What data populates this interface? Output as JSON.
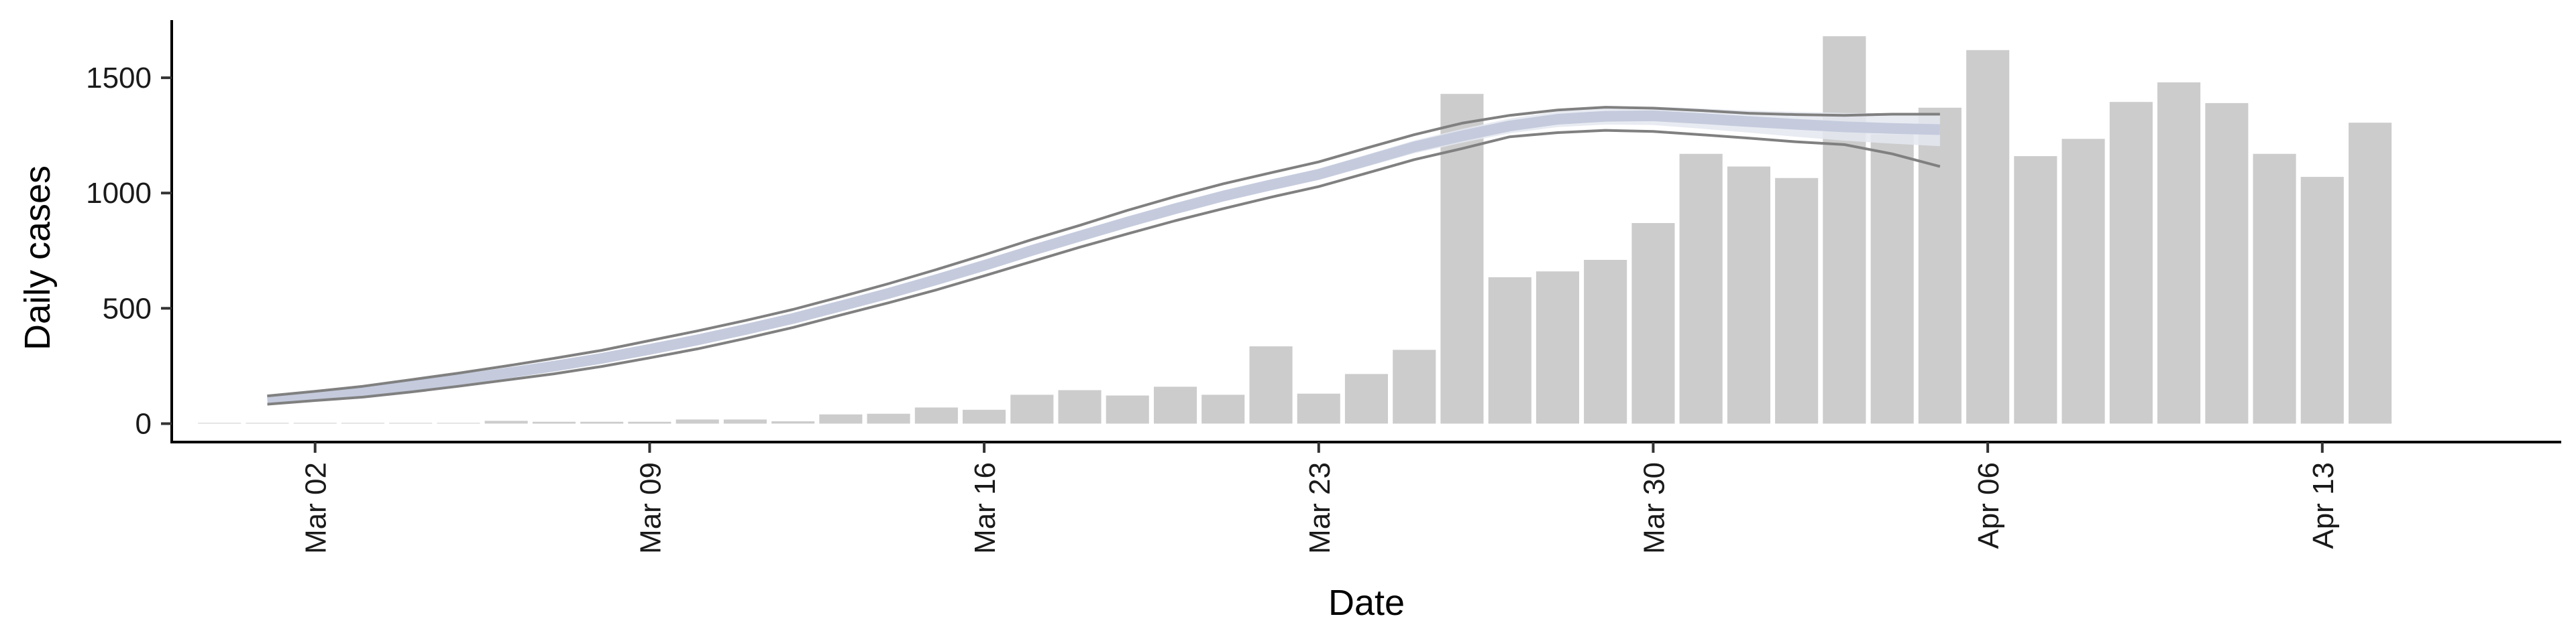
{
  "chart_data": {
    "type": "bar",
    "xlabel": "Date",
    "ylabel": "Daily cases",
    "x_axis_type": "date",
    "xlim": [
      "2020-02-28",
      "2020-04-18"
    ],
    "ylim": [
      -80,
      1750
    ],
    "x_ticks": [
      {
        "date": "2020-03-02",
        "label": "Mar 02"
      },
      {
        "date": "2020-03-09",
        "label": "Mar 09"
      },
      {
        "date": "2020-03-16",
        "label": "Mar 16"
      },
      {
        "date": "2020-03-23",
        "label": "Mar 23"
      },
      {
        "date": "2020-03-30",
        "label": "Mar 30"
      },
      {
        "date": "2020-04-06",
        "label": "Apr 06"
      },
      {
        "date": "2020-04-13",
        "label": "Apr 13"
      }
    ],
    "y_ticks": [
      0,
      500,
      1000,
      1500
    ],
    "grid": false,
    "bars": {
      "name": "",
      "color": "#cccccc",
      "dates": [
        "2020-02-29",
        "2020-03-01",
        "2020-03-02",
        "2020-03-03",
        "2020-03-04",
        "2020-03-05",
        "2020-03-06",
        "2020-03-07",
        "2020-03-08",
        "2020-03-09",
        "2020-03-10",
        "2020-03-11",
        "2020-03-12",
        "2020-03-13",
        "2020-03-14",
        "2020-03-15",
        "2020-03-16",
        "2020-03-17",
        "2020-03-18",
        "2020-03-19",
        "2020-03-20",
        "2020-03-21",
        "2020-03-22",
        "2020-03-23",
        "2020-03-24",
        "2020-03-25",
        "2020-03-26",
        "2020-03-27",
        "2020-03-28",
        "2020-03-29",
        "2020-03-30",
        "2020-03-31",
        "2020-04-01",
        "2020-04-02",
        "2020-04-03",
        "2020-04-04",
        "2020-04-05",
        "2020-04-06",
        "2020-04-07",
        "2020-04-08",
        "2020-04-09",
        "2020-04-10",
        "2020-04-11",
        "2020-04-12",
        "2020-04-13",
        "2020-04-14"
      ],
      "values": [
        3,
        3,
        3,
        3,
        3,
        3,
        12,
        8,
        8,
        8,
        18,
        18,
        10,
        40,
        43,
        70,
        60,
        125,
        145,
        122,
        160,
        125,
        335,
        130,
        215,
        320,
        1430,
        635,
        660,
        710,
        870,
        1170,
        1115,
        1065,
        1680,
        1255,
        1370,
        1620,
        1160,
        1235,
        1395,
        1480,
        1390,
        1170,
        1070,
        1305
      ]
    },
    "trend": {
      "name": "",
      "band_color": "#c5cbdd",
      "line_color": "#808080",
      "dates": [
        "2020-03-01",
        "2020-03-02",
        "2020-03-03",
        "2020-03-04",
        "2020-03-05",
        "2020-03-06",
        "2020-03-07",
        "2020-03-08",
        "2020-03-09",
        "2020-03-10",
        "2020-03-11",
        "2020-03-12",
        "2020-03-13",
        "2020-03-14",
        "2020-03-15",
        "2020-03-16",
        "2020-03-17",
        "2020-03-18",
        "2020-03-19",
        "2020-03-20",
        "2020-03-21",
        "2020-03-22",
        "2020-03-23",
        "2020-03-24",
        "2020-03-25",
        "2020-03-26",
        "2020-03-27",
        "2020-03-28",
        "2020-03-29",
        "2020-03-30",
        "2020-03-31",
        "2020-04-01",
        "2020-04-02",
        "2020-04-03",
        "2020-04-04",
        "2020-04-05"
      ],
      "mean": [
        102,
        120,
        138,
        163,
        190,
        219,
        249,
        283,
        322,
        363,
        408,
        456,
        510,
        565,
        624,
        686,
        751,
        813,
        874,
        932,
        987,
        1035,
        1081,
        1140,
        1200,
        1248,
        1291,
        1320,
        1333,
        1335,
        1323,
        1310,
        1298,
        1287,
        1280,
        1275
      ],
      "upper": [
        120,
        140,
        162,
        190,
        219,
        250,
        283,
        318,
        360,
        402,
        447,
        495,
        550,
        607,
        668,
        732,
        798,
        860,
        925,
        985,
        1040,
        1088,
        1135,
        1195,
        1253,
        1303,
        1337,
        1360,
        1372,
        1368,
        1358,
        1346,
        1340,
        1337,
        1342,
        1342
      ],
      "lower": [
        84,
        100,
        115,
        137,
        162,
        189,
        216,
        248,
        285,
        324,
        369,
        417,
        471,
        524,
        580,
        641,
        703,
        765,
        823,
        880,
        932,
        982,
        1028,
        1086,
        1145,
        1193,
        1244,
        1262,
        1272,
        1267,
        1253,
        1238,
        1222,
        1210,
        1170,
        1115
      ],
      "band_width": [
        10,
        10,
        10,
        12,
        12,
        12,
        12,
        14,
        14,
        14,
        14,
        16,
        16,
        16,
        18,
        18,
        18,
        20,
        20,
        22,
        22,
        24,
        24,
        26,
        28,
        30,
        32,
        34,
        36,
        40,
        44,
        48,
        54,
        60,
        66,
        72
      ]
    }
  }
}
